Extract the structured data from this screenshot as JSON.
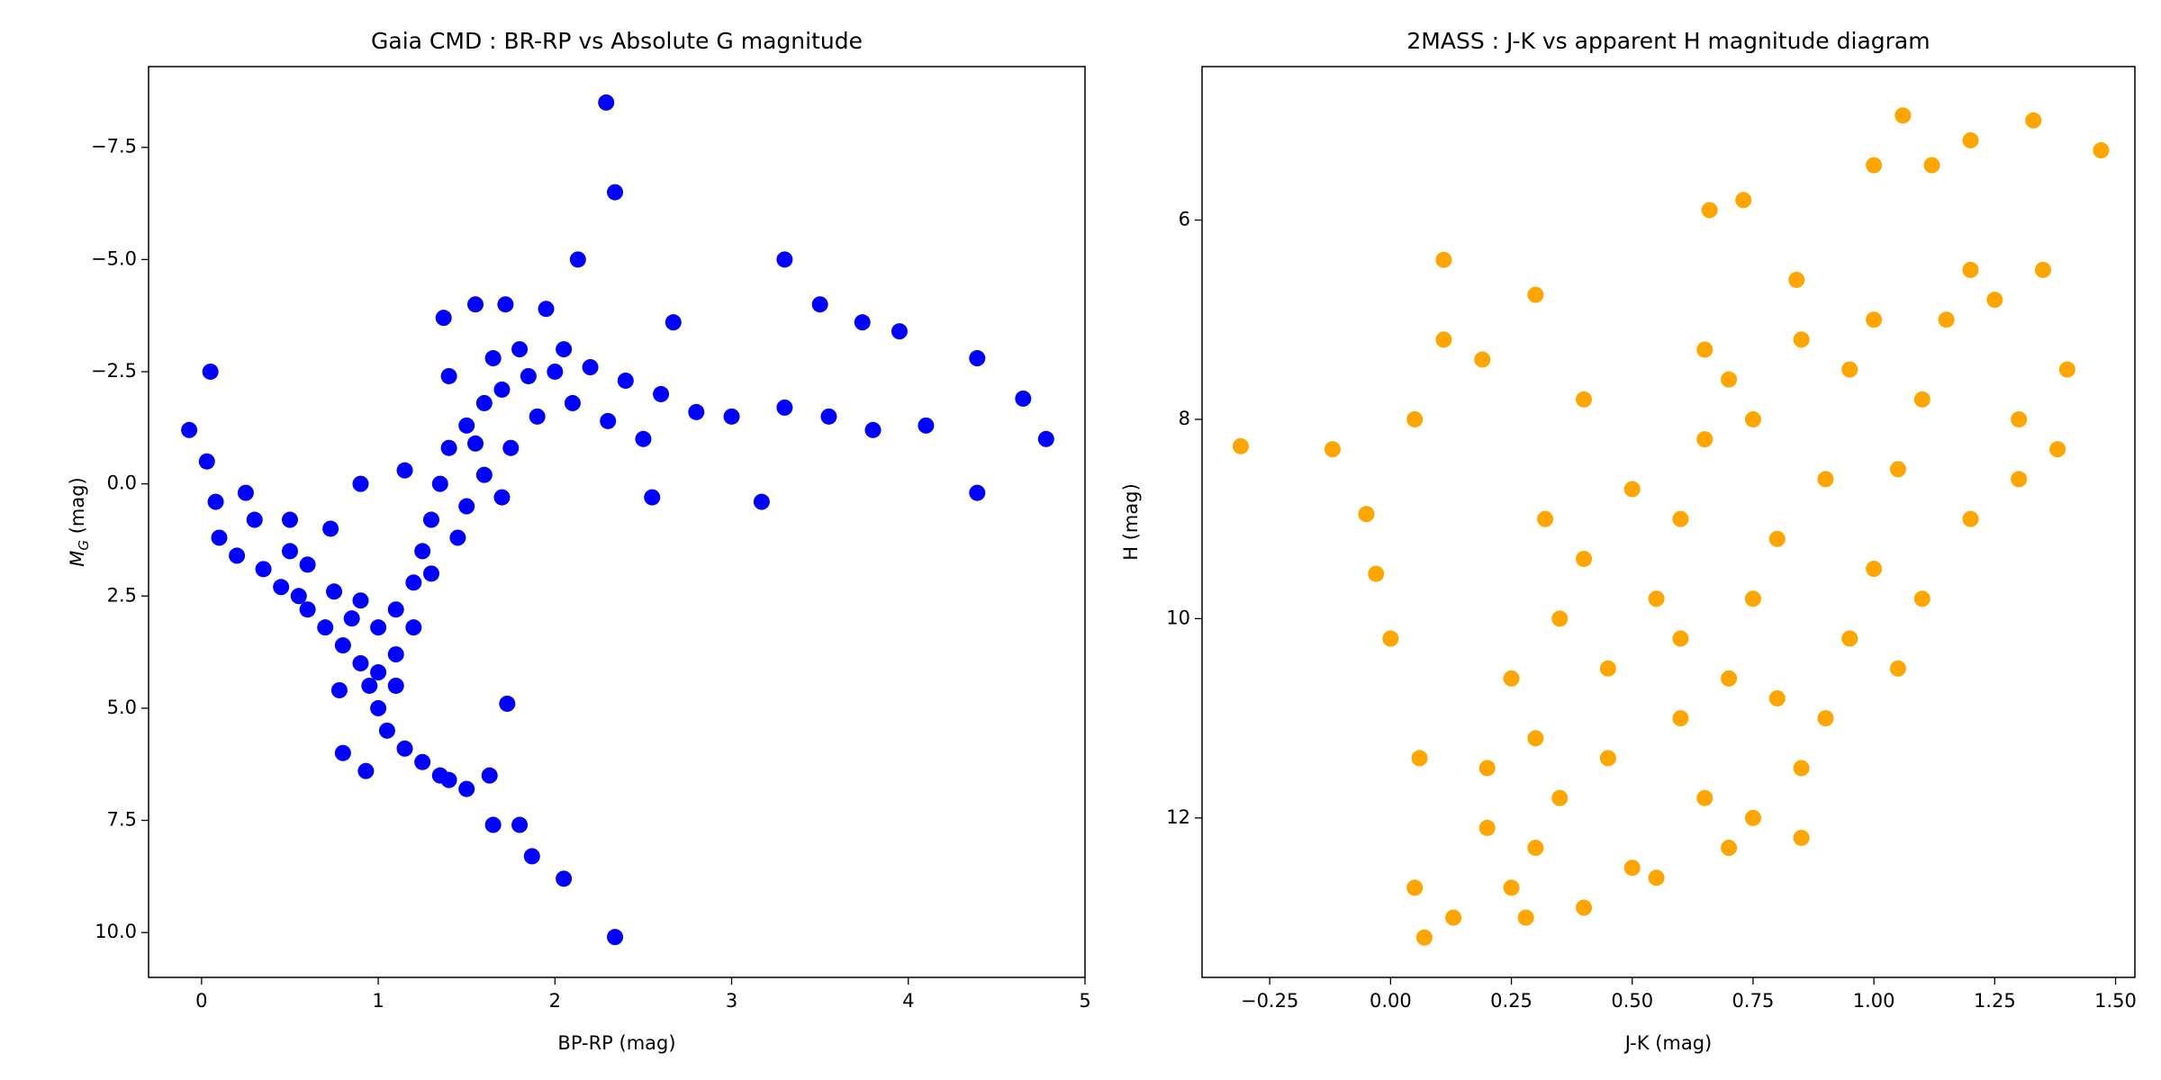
{
  "chart_data": [
    {
      "type": "scatter",
      "title": "Gaia CMD : BR-RP vs Absolute G magnitude",
      "xlabel": "BP-RP (mag)",
      "ylabel_parts": [
        "M",
        "G",
        " (mag)"
      ],
      "xlim": [
        -0.3,
        5.0
      ],
      "ylim": [
        -9.3,
        11.0
      ],
      "y_inverted": true,
      "xticks": [
        0,
        1,
        2,
        3,
        4,
        5
      ],
      "yticks": [
        {
          "value": -7.5,
          "label": "−7.5"
        },
        {
          "value": -5.0,
          "label": "−5.0"
        },
        {
          "value": -2.5,
          "label": "−2.5"
        },
        {
          "value": 0.0,
          "label": "0.0"
        },
        {
          "value": 2.5,
          "label": "2.5"
        },
        {
          "value": 5.0,
          "label": "5.0"
        },
        {
          "value": 7.5,
          "label": "7.5"
        },
        {
          "value": 10.0,
          "label": "10.0"
        }
      ],
      "color": "#0000ff",
      "x": [
        2.29,
        2.34,
        2.13,
        3.3,
        3.5,
        3.74,
        3.95,
        1.37,
        1.55,
        1.72,
        1.95,
        -0.07,
        0.05,
        2.67,
        4.39,
        4.65,
        4.78,
        4.1,
        4.39,
        3.17,
        2.55,
        0.03,
        0.08,
        0.25,
        0.3,
        0.1,
        0.5,
        0.73,
        0.78,
        0.8,
        0.93,
        1.1,
        1.35,
        1.63,
        1.5,
        1.73,
        1.65,
        1.8,
        1.87,
        2.05,
        2.34,
        0.9,
        1.15,
        0.2,
        0.35,
        0.45,
        0.55,
        0.6,
        0.7,
        0.8,
        0.9,
        0.95,
        1.0,
        1.05,
        1.15,
        1.25,
        1.4,
        0.6,
        0.75,
        0.85,
        1.0,
        1.1,
        1.2,
        1.25,
        1.3,
        1.35,
        1.4,
        1.5,
        1.6,
        1.7,
        1.85,
        2.0,
        2.2,
        2.4,
        2.6,
        2.8,
        3.0,
        3.3,
        3.55,
        3.8,
        1.5,
        1.6,
        1.75,
        1.9,
        2.1,
        1.45,
        1.3,
        1.2,
        1.1,
        1.0,
        2.3,
        2.5,
        1.65,
        1.4,
        1.8,
        2.05,
        0.5,
        0.9,
        1.55,
        1.7
      ],
      "values": [
        -8.5,
        -6.5,
        -5.0,
        -5.0,
        -4.0,
        -3.6,
        -3.4,
        -3.7,
        -4.0,
        -4.0,
        -3.9,
        -1.2,
        -2.5,
        -3.6,
        -2.8,
        -1.9,
        -1.0,
        -1.3,
        0.2,
        0.4,
        0.3,
        -0.5,
        0.4,
        0.2,
        0.8,
        1.2,
        0.8,
        1.0,
        4.6,
        6.0,
        6.4,
        4.5,
        6.5,
        6.5,
        6.8,
        4.9,
        7.6,
        7.6,
        8.3,
        8.8,
        10.1,
        0.0,
        -0.3,
        1.6,
        1.9,
        2.3,
        2.5,
        2.8,
        3.2,
        3.6,
        4.0,
        4.5,
        5.0,
        5.5,
        5.9,
        6.2,
        6.6,
        1.8,
        2.4,
        3.0,
        3.2,
        2.8,
        2.2,
        1.5,
        0.8,
        0.0,
        -0.8,
        -1.3,
        -1.8,
        -2.1,
        -2.4,
        -2.5,
        -2.6,
        -2.3,
        -2.0,
        -1.6,
        -1.5,
        -1.7,
        -1.5,
        -1.2,
        0.5,
        -0.2,
        -0.8,
        -1.5,
        -1.8,
        1.2,
        2.0,
        3.2,
        3.8,
        4.2,
        -1.4,
        -1.0,
        -2.8,
        -2.4,
        -3.0,
        -3.0,
        1.5,
        2.6,
        -0.9,
        0.3
      ]
    },
    {
      "type": "scatter",
      "title": "2MASS : J-K vs apparent H magnitude diagram",
      "xlabel": "J-K (mag)",
      "ylabel": "H (mag)",
      "xlim": [
        -0.39,
        1.54
      ],
      "ylim": [
        4.46,
        13.6
      ],
      "y_inverted": true,
      "xticks": [
        {
          "value": -0.25,
          "label": "−0.25"
        },
        {
          "value": 0.0,
          "label": "0.00"
        },
        {
          "value": 0.25,
          "label": "0.25"
        },
        {
          "value": 0.5,
          "label": "0.50"
        },
        {
          "value": 0.75,
          "label": "0.75"
        },
        {
          "value": 1.0,
          "label": "1.00"
        },
        {
          "value": 1.25,
          "label": "1.25"
        },
        {
          "value": 1.5,
          "label": "1.50"
        }
      ],
      "yticks": [
        6,
        8,
        10,
        12
      ],
      "color": "#ffa500",
      "x": [
        -0.31,
        -0.12,
        -0.05,
        -0.03,
        0.0,
        0.05,
        0.11,
        0.11,
        0.19,
        0.3,
        0.4,
        1.06,
        1.33,
        1.47,
        1.2,
        1.0,
        1.12,
        0.73,
        0.84,
        0.66,
        0.07,
        0.13,
        0.2,
        0.05,
        1.4,
        1.38,
        1.3,
        0.06,
        0.25,
        0.3,
        0.35,
        0.3,
        0.25,
        0.35,
        0.4,
        0.32,
        0.45,
        0.5,
        0.28,
        0.4,
        0.45,
        0.2,
        0.6,
        0.65,
        0.7,
        0.75,
        0.8,
        0.85,
        0.9,
        0.95,
        1.0,
        1.05,
        1.1,
        1.15,
        1.2,
        1.25,
        0.6,
        0.65,
        0.7,
        0.55,
        0.75,
        0.85,
        0.6,
        0.7,
        0.8,
        0.9,
        0.95,
        1.0,
        1.05,
        1.1,
        1.2,
        1.3,
        1.35,
        0.55,
        0.5,
        0.65,
        0.75,
        0.85
      ],
      "values": [
        8.27,
        8.3,
        8.95,
        9.55,
        10.2,
        8.0,
        6.4,
        7.2,
        7.4,
        6.75,
        7.8,
        4.95,
        5.0,
        5.3,
        5.2,
        5.45,
        5.45,
        5.8,
        6.6,
        5.9,
        13.2,
        13.0,
        12.1,
        12.7,
        7.5,
        8.3,
        8.6,
        11.4,
        12.7,
        12.3,
        11.8,
        11.2,
        10.6,
        10.0,
        9.4,
        9.0,
        11.4,
        12.5,
        13.0,
        12.9,
        10.5,
        11.5,
        9.0,
        8.2,
        7.6,
        9.8,
        10.8,
        11.5,
        11.0,
        10.2,
        9.5,
        8.5,
        7.8,
        7.0,
        6.5,
        6.8,
        11.0,
        11.8,
        12.3,
        12.6,
        12.0,
        12.2,
        10.2,
        10.6,
        9.2,
        8.6,
        7.5,
        7.0,
        10.5,
        9.8,
        9.0,
        8.0,
        6.5,
        9.8,
        8.7,
        7.3,
        8.0,
        7.2
      ]
    }
  ]
}
